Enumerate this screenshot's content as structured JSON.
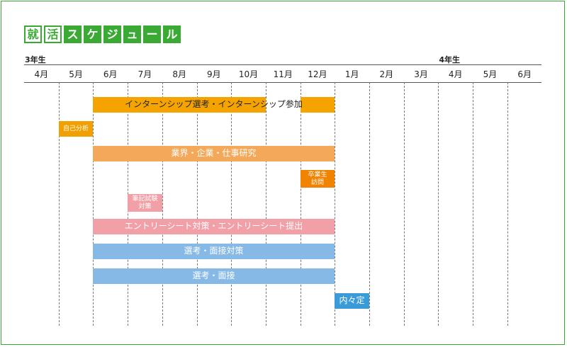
{
  "title": {
    "chars": [
      "就",
      "活",
      "ス",
      "ケ",
      "ジ",
      "ュ",
      "ー",
      "ル"
    ],
    "outline_count": 2
  },
  "grades": [
    {
      "label": "3年生",
      "start": 0
    },
    {
      "label": "4年生",
      "start": 12
    }
  ],
  "months": [
    "4月",
    "5月",
    "6月",
    "7月",
    "8月",
    "9月",
    "10月",
    "11月",
    "12月",
    "1月",
    "2月",
    "3月",
    "4月",
    "5月",
    "6月"
  ],
  "colors": {
    "accent": "#3aaa35",
    "yellow": "#f5a300",
    "orange": "#f0a000",
    "light_orange": "#f4a95a",
    "deep_orange": "#f08300",
    "pink": "#f2a0a8",
    "blue": "#86b9e6",
    "sky": "#3a9bd8"
  },
  "tasks": [
    {
      "label": "インターンシップ選考・インターンシップ参加",
      "start": 2,
      "end": 9,
      "color": "#f5a300",
      "dark": true,
      "size": "normal",
      "gap": [
        7,
        8
      ]
    },
    {
      "label": "自己分析",
      "start": 1,
      "end": 2,
      "color": "#f0a000",
      "dark": false,
      "size": "small"
    },
    {
      "label": "業界・企業・仕事研究",
      "start": 2,
      "end": 9,
      "color": "#f4a95a",
      "dark": false,
      "size": "normal"
    },
    {
      "label": "卒業生\n訪問",
      "start": 8,
      "end": 9,
      "color": "#f08300",
      "dark": false,
      "size": "small"
    },
    {
      "label": "筆記試験\n対策",
      "start": 3,
      "end": 4,
      "color": "#f2a0a8",
      "dark": false,
      "size": "small"
    },
    {
      "label": "エントリーシート対策・エントリーシート提出",
      "start": 2,
      "end": 9,
      "color": "#f2a0a8",
      "dark": false,
      "size": "normal"
    },
    {
      "label": "選考・面接対策",
      "start": 2,
      "end": 9,
      "color": "#86b9e6",
      "dark": false,
      "size": "normal"
    },
    {
      "label": "選考・面接",
      "start": 2,
      "end": 9,
      "color": "#86b9e6",
      "dark": false,
      "size": "normal"
    },
    {
      "label": "内々定",
      "start": 9,
      "end": 10,
      "color": "#3a9bd8",
      "dark": false,
      "size": "normal"
    }
  ]
}
